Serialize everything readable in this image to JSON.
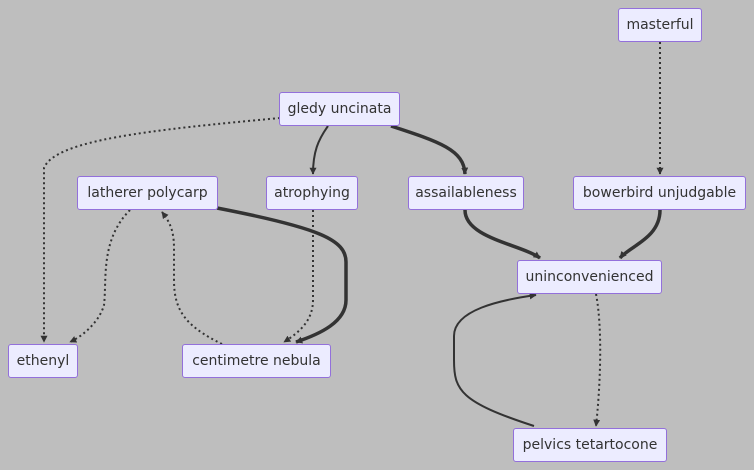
{
  "nodes": {
    "masterful": "masterful",
    "gledy_uncinata": "gledy uncinata",
    "latherer_polycarp": "latherer polycarp",
    "atrophying": "atrophying",
    "assailableness": "assailableness",
    "bowerbird_unjudgable": "bowerbird unjudgable",
    "uninconvenienced": "uninconvenienced",
    "ethenyl": "ethenyl",
    "centimetre_nebula": "centimetre nebula",
    "pelvics_tetartocone": "pelvics tetartocone"
  },
  "edges": [
    {
      "from": "masterful",
      "to": "bowerbird_unjudgable",
      "style": "dotted"
    },
    {
      "from": "gledy_uncinata",
      "to": "ethenyl",
      "style": "dotted"
    },
    {
      "from": "gledy_uncinata",
      "to": "atrophying",
      "style": "solid"
    },
    {
      "from": "gledy_uncinata",
      "to": "assailableness",
      "style": "thick"
    },
    {
      "from": "latherer_polycarp",
      "to": "ethenyl",
      "style": "dotted"
    },
    {
      "from": "latherer_polycarp",
      "to": "centimetre_nebula",
      "style": "thick"
    },
    {
      "from": "centimetre_nebula",
      "to": "latherer_polycarp",
      "style": "dotted"
    },
    {
      "from": "atrophying",
      "to": "centimetre_nebula",
      "style": "dotted"
    },
    {
      "from": "assailableness",
      "to": "uninconvenienced",
      "style": "thick"
    },
    {
      "from": "bowerbird_unjudgable",
      "to": "uninconvenienced",
      "style": "thick"
    },
    {
      "from": "uninconvenienced",
      "to": "pelvics_tetartocone",
      "style": "dotted"
    },
    {
      "from": "pelvics_tetartocone",
      "to": "uninconvenienced",
      "style": "solid"
    }
  ],
  "colors": {
    "background": "#bebebe",
    "node_fill": "#ececff",
    "node_border": "#9370db",
    "edge": "#333333",
    "text": "#333333"
  }
}
